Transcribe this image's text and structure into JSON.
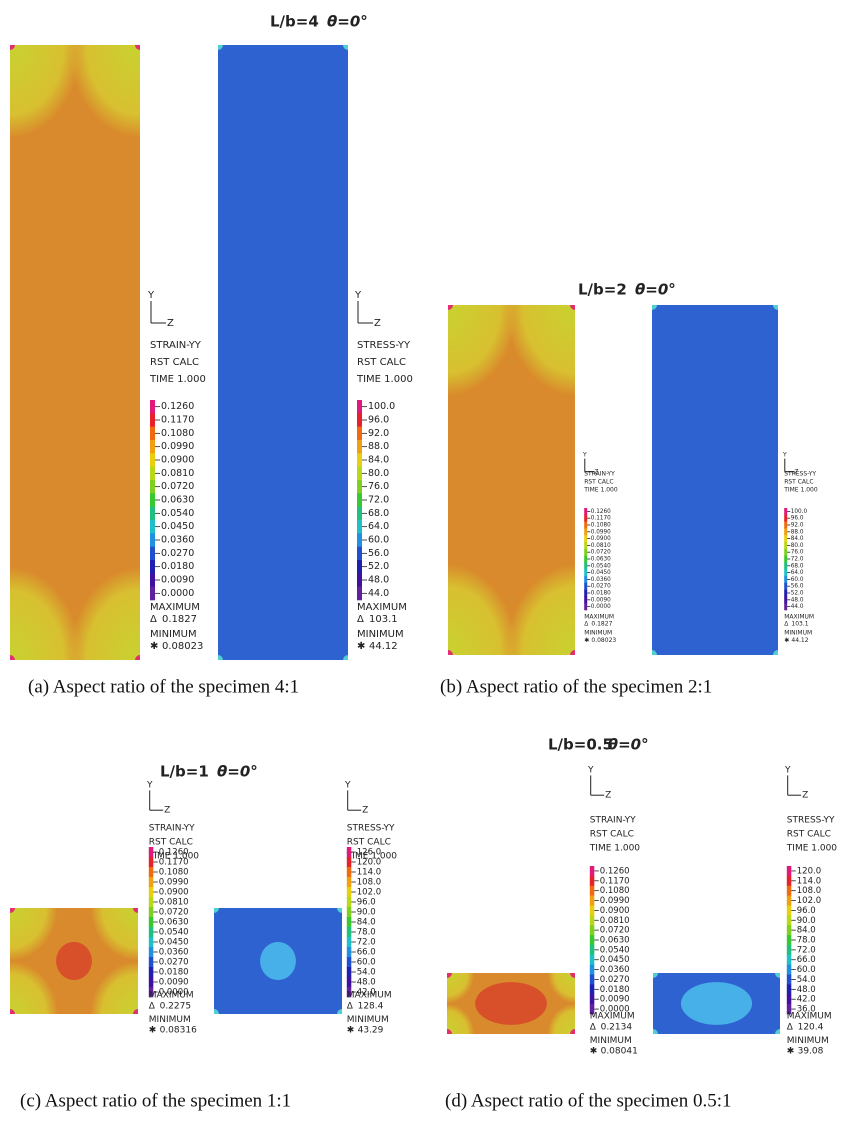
{
  "panels": [
    {
      "title": "L/b=4",
      "angle": "θ=0°",
      "caption": "(a) Aspect ratio of the specimen 4:1",
      "strain": {
        "axis_y": "Y",
        "axis_z": "Z",
        "lines": [
          "STRAIN-YY",
          "RST CALC",
          "TIME 1.000"
        ],
        "levels": [
          "0.1260",
          "0.1170",
          "0.1080",
          "0.0990",
          "0.0900",
          "0.0810",
          "0.0720",
          "0.0630",
          "0.0540",
          "0.0450",
          "0.0360",
          "0.0270",
          "0.0180",
          "0.0090",
          "0.0000"
        ],
        "max_label": "MAXIMUM",
        "max_symbol": "Δ",
        "max_value": "0.1827",
        "min_label": "MINIMUM",
        "min_symbol": "✱",
        "min_value": "0.08023"
      },
      "stress": {
        "axis_y": "Y",
        "axis_z": "Z",
        "lines": [
          "STRESS-YY",
          "RST CALC",
          "TIME 1.000"
        ],
        "levels": [
          "100.0",
          "96.0",
          "92.0",
          "88.0",
          "84.0",
          "80.0",
          "76.0",
          "72.0",
          "68.0",
          "64.0",
          "60.0",
          "56.0",
          "52.0",
          "48.0",
          "44.0"
        ],
        "max_label": "MAXIMUM",
        "max_symbol": "Δ",
        "max_value": "103.1",
        "min_label": "MINIMUM",
        "min_symbol": "✱",
        "min_value": "44.12"
      }
    },
    {
      "title": "L/b=2",
      "angle": "θ=0°",
      "caption": "(b) Aspect ratio of the specimen 2:1",
      "strain": {
        "axis_y": "Y",
        "axis_z": "Z",
        "lines": [
          "STRAIN-YY",
          "RST CALC",
          "TIME 1.000"
        ],
        "levels": [
          "0.1260",
          "0.1170",
          "0.1080",
          "0.0990",
          "0.0900",
          "0.0810",
          "0.0720",
          "0.0630",
          "0.0540",
          "0.0450",
          "0.0360",
          "0.0270",
          "0.0180",
          "0.0090",
          "0.0000"
        ],
        "max_label": "MAXIMUM",
        "max_symbol": "Δ",
        "max_value": "0.1827",
        "min_label": "MINIMUM",
        "min_symbol": "✱",
        "min_value": "0.08023"
      },
      "stress": {
        "axis_y": "Y",
        "axis_z": "Z",
        "lines": [
          "STRESS-YY",
          "RST CALC",
          "TIME 1.000"
        ],
        "levels": [
          "100.0",
          "96.0",
          "92.0",
          "88.0",
          "84.0",
          "80.0",
          "76.0",
          "72.0",
          "68.0",
          "64.0",
          "60.0",
          "56.0",
          "52.0",
          "48.0",
          "44.0"
        ],
        "max_label": "MAXIMUM",
        "max_symbol": "Δ",
        "max_value": "103.1",
        "min_label": "MINIMUM",
        "min_symbol": "✱",
        "min_value": "44.12"
      }
    },
    {
      "title": "L/b=1",
      "angle": "θ=0°",
      "caption": "(c) Aspect ratio of the specimen 1:1",
      "strain": {
        "axis_y": "Y",
        "axis_z": "Z",
        "lines": [
          "STRAIN-YY",
          "RST CALC",
          "TIME 1.000"
        ],
        "levels": [
          "0.1260",
          "0.1170",
          "0.1080",
          "0.0990",
          "0.0900",
          "0.0810",
          "0.0720",
          "0.0630",
          "0.0540",
          "0.0450",
          "0.0360",
          "0.0270",
          "0.0180",
          "0.0090",
          "0.0000"
        ],
        "max_label": "MAXIMUM",
        "max_symbol": "Δ",
        "max_value": "0.2275",
        "min_label": "MINIMUM",
        "min_symbol": "✱",
        "min_value": "0.08316"
      },
      "stress": {
        "axis_y": "Y",
        "axis_z": "Z",
        "lines": [
          "STRESS-YY",
          "RST CALC",
          "TIME 1.000"
        ],
        "levels": [
          "126.0",
          "120.0",
          "114.0",
          "108.0",
          "102.0",
          "96.0",
          "90.0",
          "84.0",
          "78.0",
          "72.0",
          "66.0",
          "60.0",
          "54.0",
          "48.0",
          "42.0"
        ],
        "max_label": "MAXIMUM",
        "max_symbol": "Δ",
        "max_value": "128.4",
        "min_label": "MINIMUM",
        "min_symbol": "✱",
        "min_value": "43.29"
      }
    },
    {
      "title": "L/b=0.5",
      "angle": "θ=0°",
      "caption": "(d) Aspect ratio of the specimen 0.5:1",
      "strain": {
        "axis_y": "Y",
        "axis_z": "Z",
        "lines": [
          "STRAIN-YY",
          "RST CALC",
          "TIME 1.000"
        ],
        "levels": [
          "0.1260",
          "0.1170",
          "0.1080",
          "0.0990",
          "0.0900",
          "0.0810",
          "0.0720",
          "0.0630",
          "0.0540",
          "0.0450",
          "0.0360",
          "0.0270",
          "0.0180",
          "0.0090",
          "0.0000"
        ],
        "max_label": "MAXIMUM",
        "max_symbol": "Δ",
        "max_value": "0.2134",
        "min_label": "MINIMUM",
        "min_symbol": "✱",
        "min_value": "0.08041"
      },
      "stress": {
        "axis_y": "Y",
        "axis_z": "Z",
        "lines": [
          "STRESS-YY",
          "RST CALC",
          "TIME 1.000"
        ],
        "levels": [
          "120.0",
          "114.0",
          "108.0",
          "102.0",
          "96.0",
          "90.0",
          "84.0",
          "78.0",
          "72.0",
          "66.0",
          "60.0",
          "54.0",
          "48.0",
          "42.0",
          "36.0"
        ],
        "max_label": "MAXIMUM",
        "max_symbol": "Δ",
        "max_value": "120.4",
        "min_label": "MINIMUM",
        "min_symbol": "✱",
        "min_value": "39.08"
      }
    }
  ]
}
